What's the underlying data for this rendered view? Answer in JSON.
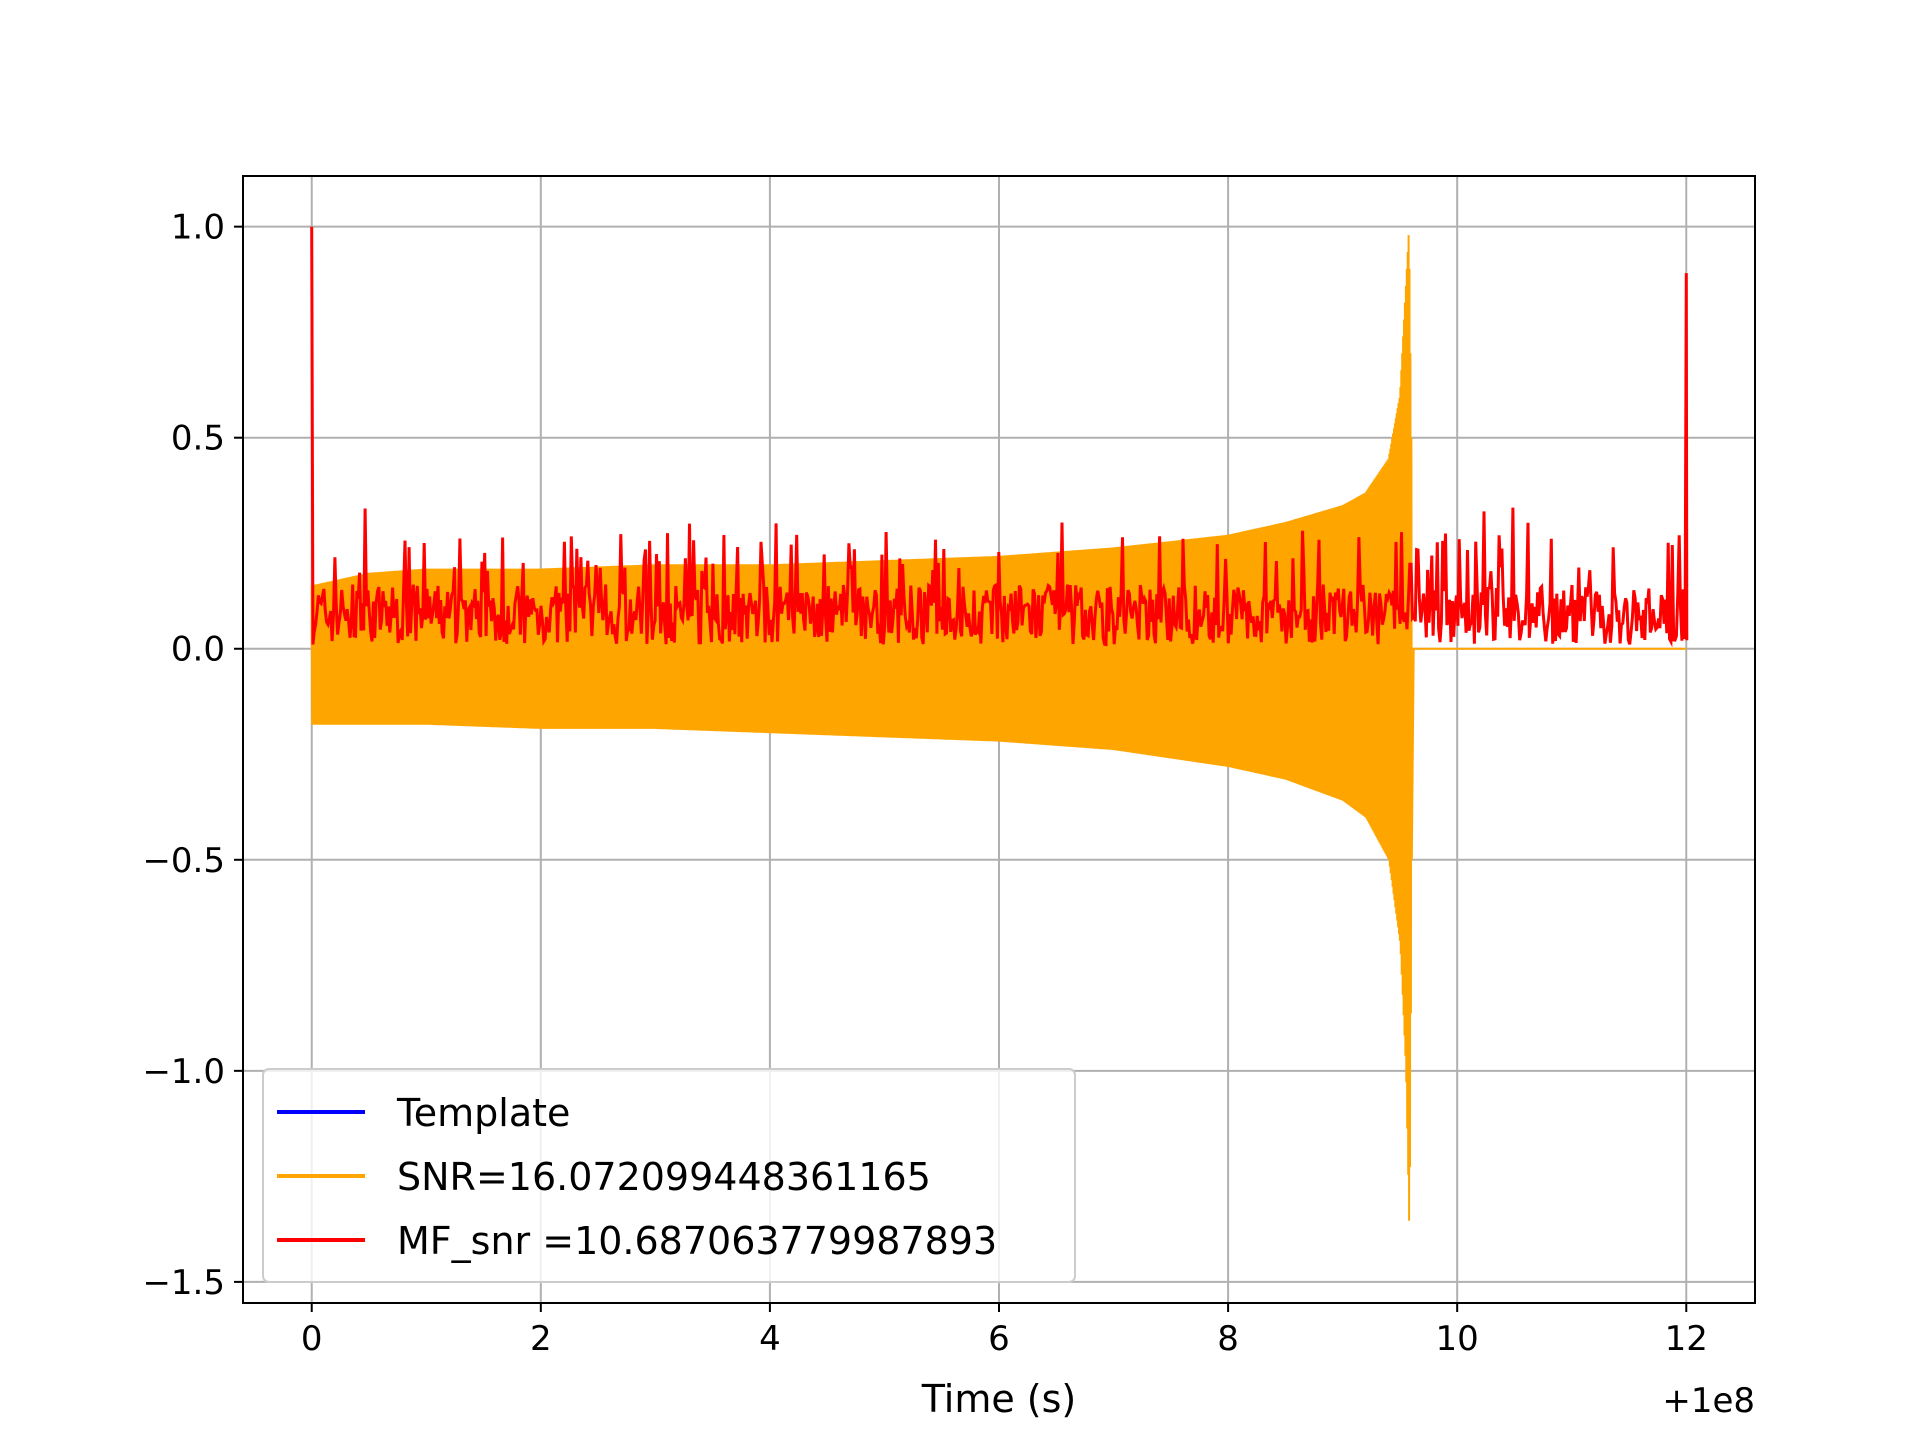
{
  "chart_data": {
    "type": "line",
    "title": "",
    "xlabel": "Time (s)",
    "ylabel": "",
    "x_offset_label": "+1e8",
    "xlim": [
      -0.6,
      12.6
    ],
    "ylim": [
      -1.55,
      1.12
    ],
    "xticks": [
      0,
      2,
      4,
      6,
      8,
      10,
      12
    ],
    "xtick_labels": [
      "0",
      "2",
      "4",
      "6",
      "8",
      "10",
      "12"
    ],
    "yticks": [
      1.0,
      0.5,
      0.0,
      -0.5,
      -1.0,
      -1.5
    ],
    "ytick_labels": [
      "1.0",
      "0.5",
      "0.0",
      "−0.5",
      "−1.0",
      "−1.5"
    ],
    "grid": true,
    "legend": {
      "placement": "lower-left"
    },
    "series": [
      {
        "name": "Template",
        "color": "#0000ff",
        "description_points": []
      },
      {
        "name": "SNR=16.072099448361165",
        "color": "#ffa500",
        "envelope": {
          "x": [
            0.0,
            0.5,
            1.0,
            2.0,
            3.0,
            4.0,
            5.0,
            6.0,
            7.0,
            8.0,
            8.5,
            9.0,
            9.2,
            9.4,
            9.5,
            9.55,
            9.58,
            9.6,
            9.62,
            10.0,
            11.0,
            12.0
          ],
          "upper": [
            0.15,
            0.18,
            0.19,
            0.19,
            0.2,
            0.2,
            0.21,
            0.22,
            0.24,
            0.27,
            0.3,
            0.34,
            0.37,
            0.45,
            0.6,
            0.85,
            1.0,
            0.5,
            0.0,
            0.0,
            0.0,
            0.0
          ],
          "lower": [
            -0.18,
            -0.18,
            -0.18,
            -0.19,
            -0.19,
            -0.2,
            -0.21,
            -0.22,
            -0.24,
            -0.28,
            -0.31,
            -0.36,
            -0.4,
            -0.5,
            -0.7,
            -1.0,
            -1.41,
            -0.5,
            0.0,
            0.0,
            0.0,
            0.0
          ]
        }
      },
      {
        "name": "MF_snr =10.687063779987893",
        "color": "#ff0000",
        "peaks": {
          "x": [
            0.0,
            9.59,
            12.0
          ],
          "y": [
            1.0,
            0.99,
            0.89
          ]
        },
        "noise_band": [
          0.01,
          0.2
        ]
      }
    ]
  }
}
